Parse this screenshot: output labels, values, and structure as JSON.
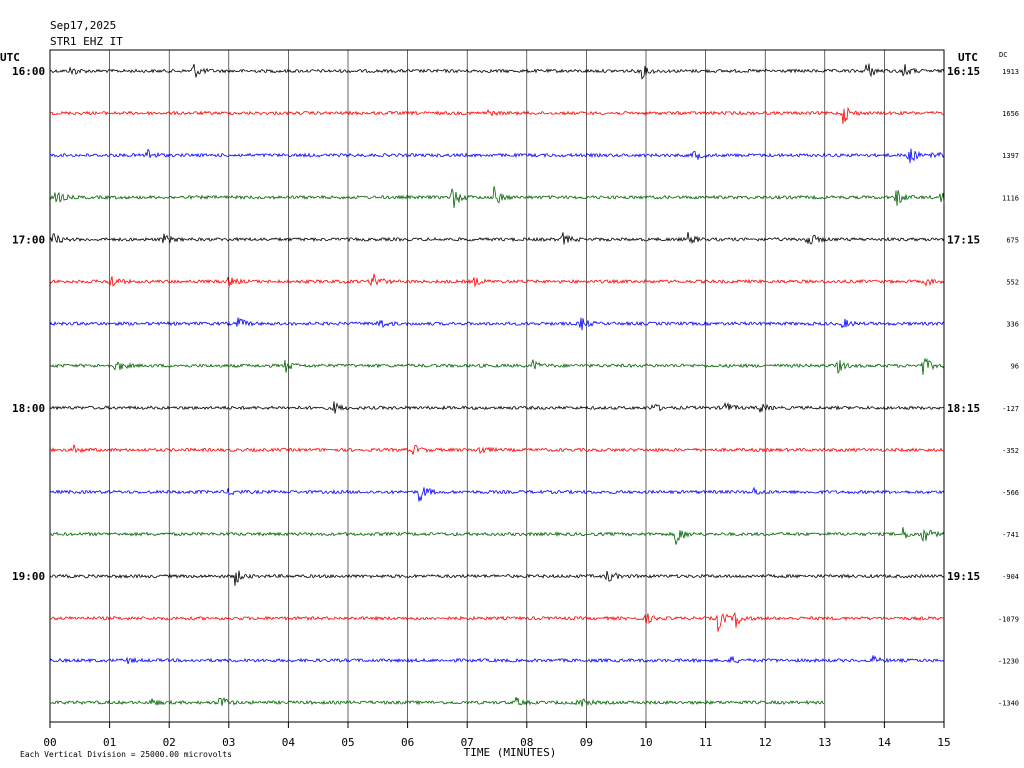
{
  "header": {
    "date": "Sep17,2025",
    "station": "STR1 EHZ IT"
  },
  "chart_data": {
    "type": "line",
    "title": "",
    "xlabel": "TIME (MINUTES)",
    "ylabel": "",
    "xlim": [
      0,
      15
    ],
    "x_ticks": [
      "00",
      "01",
      "02",
      "03",
      "04",
      "05",
      "06",
      "07",
      "08",
      "09",
      "10",
      "11",
      "12",
      "13",
      "14",
      "15"
    ],
    "grid": true,
    "left_axis_label": "UTC",
    "right_axis_label": "UTC",
    "dc_label": "DC",
    "time_labels_left": [
      {
        "row": 0,
        "text": "16:00"
      },
      {
        "row": 4,
        "text": "17:00"
      },
      {
        "row": 8,
        "text": "18:00"
      },
      {
        "row": 12,
        "text": "19:00"
      }
    ],
    "time_labels_right": [
      {
        "row": 0,
        "text": "16:15"
      },
      {
        "row": 4,
        "text": "17:15"
      },
      {
        "row": 8,
        "text": "18:15"
      },
      {
        "row": 12,
        "text": "19:15"
      }
    ],
    "dc_values": [
      "1913",
      "1656",
      "1397",
      "1116",
      "675",
      "552",
      "336",
      "96",
      "-127",
      "-352",
      "-566",
      "-741",
      "-904",
      "-1079",
      "-1230",
      "-1340"
    ],
    "trace_colors": [
      "#000000",
      "#ff0000",
      "#0000ff",
      "#006400"
    ],
    "trace_minutes": [
      15,
      15,
      15,
      15,
      15,
      15,
      15,
      15,
      15,
      15,
      15,
      15,
      15,
      15,
      15,
      13
    ],
    "events": [
      [
        [
          0.35,
          0.4
        ],
        [
          2.4,
          0.7
        ],
        [
          9.9,
          0.7
        ],
        [
          13.7,
          0.8
        ],
        [
          14.3,
          0.7
        ]
      ],
      [
        [
          7.3,
          0.3
        ],
        [
          13.3,
          0.9
        ]
      ],
      [
        [
          1.6,
          0.7
        ],
        [
          10.8,
          0.5
        ],
        [
          14.4,
          0.8
        ],
        [
          14.8,
          0.4
        ]
      ],
      [
        [
          0.1,
          0.6
        ],
        [
          6.75,
          1.0
        ],
        [
          7.45,
          0.8
        ],
        [
          14.2,
          0.8
        ],
        [
          14.95,
          0.8
        ]
      ],
      [
        [
          0.05,
          0.5
        ],
        [
          1.9,
          0.4
        ],
        [
          8.6,
          0.5
        ],
        [
          10.7,
          0.5
        ],
        [
          12.7,
          0.8
        ]
      ],
      [
        [
          1.0,
          0.7
        ],
        [
          3.0,
          0.4
        ],
        [
          5.4,
          1.0
        ],
        [
          7.1,
          0.4
        ],
        [
          14.7,
          0.3
        ]
      ],
      [
        [
          3.15,
          0.5
        ],
        [
          5.5,
          0.5
        ],
        [
          8.9,
          0.6
        ],
        [
          13.3,
          0.4
        ]
      ],
      [
        [
          1.1,
          0.6
        ],
        [
          3.95,
          0.5
        ],
        [
          8.1,
          0.4
        ],
        [
          13.2,
          0.6
        ],
        [
          14.65,
          0.8
        ]
      ],
      [
        [
          4.75,
          0.5
        ],
        [
          10.1,
          0.4
        ],
        [
          11.3,
          0.6
        ],
        [
          11.9,
          0.4
        ]
      ],
      [
        [
          0.4,
          0.3
        ],
        [
          6.1,
          0.4
        ],
        [
          7.2,
          0.4
        ]
      ],
      [
        [
          3.0,
          0.3
        ],
        [
          6.2,
          0.9
        ],
        [
          11.8,
          0.3
        ]
      ],
      [
        [
          10.5,
          1.0
        ],
        [
          14.3,
          0.5
        ],
        [
          14.65,
          0.8
        ]
      ],
      [
        [
          3.1,
          0.7
        ],
        [
          9.35,
          0.6
        ]
      ],
      [
        [
          10.0,
          0.4
        ],
        [
          11.2,
          1.0
        ],
        [
          11.5,
          0.7
        ]
      ],
      [
        [
          1.3,
          0.2
        ],
        [
          11.4,
          0.3
        ],
        [
          13.8,
          0.3
        ]
      ],
      [
        [
          1.7,
          0.3
        ],
        [
          2.85,
          0.6
        ],
        [
          7.8,
          0.4
        ],
        [
          8.85,
          0.6
        ]
      ]
    ],
    "footer_note": "Each Vertical Division = 25000.00 microvolts"
  }
}
